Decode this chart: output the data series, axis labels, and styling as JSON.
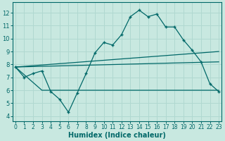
{
  "title": "",
  "xlabel": "Humidex (Indice chaleur)",
  "bg_color": "#c8e8e0",
  "grid_color": "#b0d8d0",
  "line_color": "#006868",
  "x_ticks": [
    0,
    1,
    2,
    3,
    4,
    5,
    6,
    7,
    8,
    9,
    10,
    11,
    12,
    13,
    14,
    15,
    16,
    17,
    18,
    19,
    20,
    21,
    22,
    23
  ],
  "y_ticks": [
    4,
    5,
    6,
    7,
    8,
    9,
    10,
    11,
    12
  ],
  "ylim": [
    3.6,
    12.8
  ],
  "xlim": [
    -0.3,
    23.3
  ],
  "series1_x": [
    0,
    1,
    2,
    3,
    4,
    5,
    6,
    7,
    8,
    9,
    10,
    11,
    12,
    13,
    14,
    15,
    16,
    17,
    18,
    19,
    20,
    21,
    22,
    23
  ],
  "series1_y": [
    7.8,
    7.0,
    7.3,
    7.5,
    5.9,
    5.3,
    4.3,
    5.8,
    7.3,
    8.9,
    9.7,
    9.5,
    10.3,
    11.7,
    12.2,
    11.7,
    11.9,
    10.9,
    10.9,
    9.9,
    9.1,
    8.2,
    6.5,
    5.9
  ],
  "series2_x": [
    0,
    23
  ],
  "series2_y": [
    7.8,
    9.0
  ],
  "series3_x": [
    0,
    23
  ],
  "series3_y": [
    7.8,
    8.2
  ],
  "series4_x": [
    0,
    3,
    23
  ],
  "series4_y": [
    7.8,
    6.0,
    6.0
  ]
}
